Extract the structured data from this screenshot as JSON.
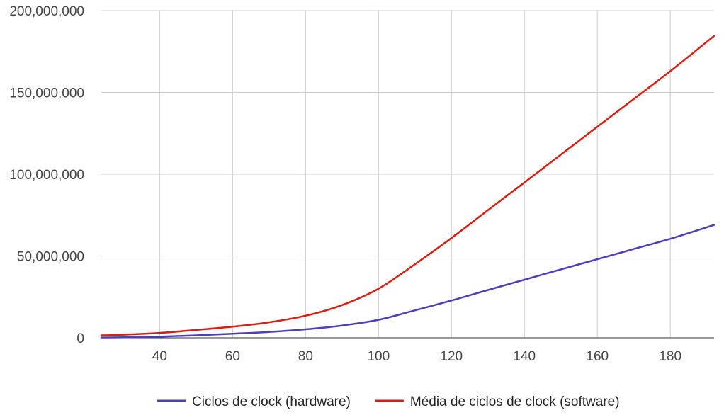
{
  "chart_data": {
    "type": "line",
    "x": [
      24,
      30,
      40,
      50,
      60,
      70,
      80,
      90,
      100,
      110,
      120,
      130,
      140,
      150,
      160,
      170,
      180,
      192
    ],
    "series": [
      {
        "name": "Ciclos de clock (hardware)",
        "color": "#4b3fbf",
        "values": [
          200000,
          300000,
          700000,
          1500000,
          2500000,
          3600000,
          5200000,
          7500000,
          11000000,
          16800000,
          22800000,
          29200000,
          35500000,
          41800000,
          48000000,
          54300000,
          60500000,
          69000000
        ]
      },
      {
        "name": "Média de ciclos de clock (software)",
        "color": "#dd1c10",
        "values": [
          1500000,
          1900000,
          3000000,
          4800000,
          6800000,
          9500000,
          13500000,
          20000000,
          30000000,
          45000000,
          61000000,
          78000000,
          95000000,
          112000000,
          129000000,
          146000000,
          163000000,
          184500000
        ]
      }
    ],
    "xlim": [
      24,
      192
    ],
    "ylim": [
      0,
      200000000
    ],
    "x_ticks": [
      40,
      60,
      80,
      100,
      120,
      140,
      160,
      180
    ],
    "x_tick_labels": [
      "40",
      "60",
      "80",
      "100",
      "120",
      "140",
      "160",
      "180"
    ],
    "y_ticks": [
      0,
      50000000,
      100000000,
      150000000,
      200000000
    ],
    "y_tick_labels": [
      "0",
      "50,000,000",
      "100,000,000",
      "150,000,000",
      "200,000,000"
    ],
    "grid": true,
    "legend": "bottom",
    "title": "",
    "xlabel": "",
    "ylabel": ""
  }
}
